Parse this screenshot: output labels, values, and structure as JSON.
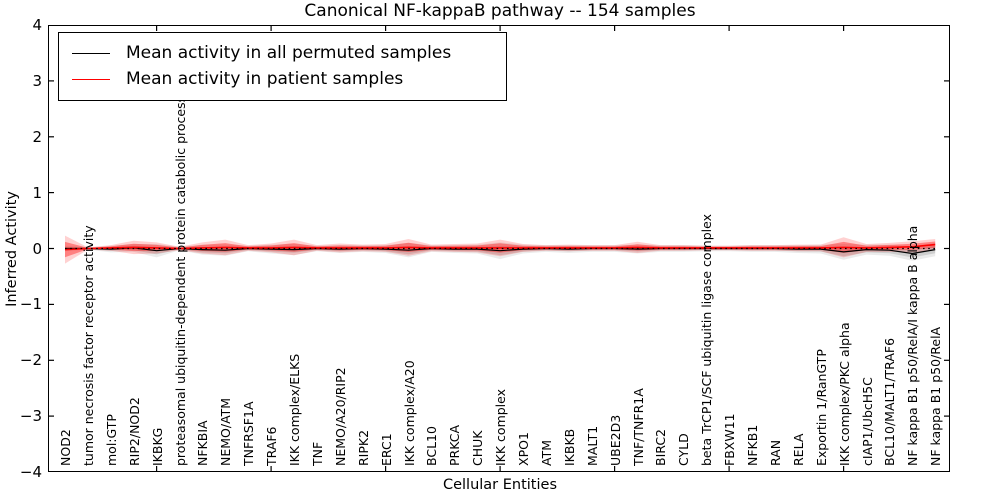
{
  "title": "Canonical NF-kappaB pathway -- 154 samples",
  "axes": {
    "ylabel": "Inferred Activity",
    "xlabel": "Cellular Entities",
    "ylim": [
      -4,
      4
    ],
    "yticks": [
      4,
      3,
      2,
      1,
      0,
      -1,
      -2,
      -3,
      -4
    ],
    "xtick_mark_every": 5
  },
  "legend": {
    "position": "upper left",
    "items": [
      {
        "label": "Mean activity in all permuted samples",
        "color": "#000000"
      },
      {
        "label": "Mean activity in patient samples",
        "color": "#ff0000"
      }
    ]
  },
  "colors": {
    "permuted_line": "#000000",
    "patient_line": "#ff0000",
    "zero_reference_line": "#000000"
  },
  "chart_data": {
    "type": "line",
    "title": "Canonical NF-kappaB pathway -- 154 samples",
    "xlabel": "Cellular Entities",
    "ylabel": "Inferred Activity",
    "ylim": [
      -4,
      4
    ],
    "grid": false,
    "legend_position": "upper left",
    "zero_line": true,
    "categories": [
      "NOD2",
      "tumor necrosis factor receptor activity",
      "mol:GTP",
      "RIP2/NOD2",
      "IKBKG",
      "proteasomal ubiquitin-dependent protein catabolic process",
      "NFKBIA",
      "NEMO/ATM",
      "TNFRSF1A",
      "TRAF6",
      "IKK complex/ELKS",
      "TNF",
      "NEMO/A20/RIP2",
      "RIPK2",
      "ERC1",
      "IKK complex/A20",
      "BCL10",
      "PRKCA",
      "CHUK",
      "IKK complex",
      "XPO1",
      "ATM",
      "IKBKB",
      "MALT1",
      "UBE2D3",
      "TNF/TNFR1A",
      "BIRC2",
      "CYLD",
      "beta TrCP1/SCF ubiquitin ligase complex",
      "FBXW11",
      "NFKB1",
      "RAN",
      "RELA",
      "Exportin 1/RanGTP",
      "IKK complex/PKC alpha",
      "cIAP1/UbcH5C",
      "BCL10/MALT1/TRAF6",
      "NF kappa B1 p50/RelA/I kappa B alpha",
      "NF kappa B1 p50/RelA"
    ],
    "series": [
      {
        "name": "Mean activity in all permuted samples",
        "color": "#000000",
        "values": [
          0,
          0,
          -0.01,
          0.01,
          -0.04,
          0,
          -0.02,
          -0.03,
          0,
          -0.01,
          -0.02,
          0,
          -0.01,
          0,
          -0.01,
          -0.03,
          0,
          -0.01,
          -0.01,
          -0.04,
          -0.01,
          0,
          -0.01,
          0,
          0,
          -0.01,
          0,
          0,
          0,
          0,
          0,
          0,
          -0.01,
          -0.01,
          -0.06,
          -0.02,
          -0.03,
          -0.09,
          -0.02
        ],
        "band_halfwidth": [
          0.05,
          0.02,
          0.06,
          0.07,
          0.12,
          0.03,
          0.09,
          0.1,
          0.05,
          0.08,
          0.1,
          0.05,
          0.07,
          0.06,
          0.07,
          0.13,
          0.06,
          0.07,
          0.08,
          0.15,
          0.08,
          0.06,
          0.07,
          0.06,
          0.06,
          0.08,
          0.06,
          0.06,
          0.05,
          0.05,
          0.06,
          0.06,
          0.07,
          0.08,
          0.14,
          0.09,
          0.1,
          0.13,
          0.12
        ]
      },
      {
        "name": "Mean activity in patient samples",
        "color": "#ff0000",
        "values": [
          -0.02,
          0,
          0.01,
          0.02,
          0.01,
          0,
          0.01,
          0.02,
          0.01,
          0.01,
          0.02,
          0.01,
          0.01,
          0.01,
          0.01,
          0.02,
          0.01,
          0.01,
          0.01,
          0.01,
          0.01,
          0.01,
          0.01,
          0.01,
          0.01,
          0.02,
          0.01,
          0.01,
          0.01,
          0.01,
          0.01,
          0.01,
          0.01,
          0.01,
          0.02,
          0.01,
          0.02,
          0.03,
          0.07
        ],
        "band_halfwidth": [
          0.25,
          0.02,
          0.05,
          0.12,
          0.1,
          0.03,
          0.1,
          0.14,
          0.05,
          0.08,
          0.14,
          0.05,
          0.08,
          0.06,
          0.07,
          0.15,
          0.06,
          0.07,
          0.08,
          0.15,
          0.07,
          0.05,
          0.06,
          0.05,
          0.05,
          0.1,
          0.05,
          0.05,
          0.04,
          0.04,
          0.05,
          0.05,
          0.06,
          0.06,
          0.18,
          0.07,
          0.08,
          0.1,
          0.1
        ]
      }
    ]
  }
}
